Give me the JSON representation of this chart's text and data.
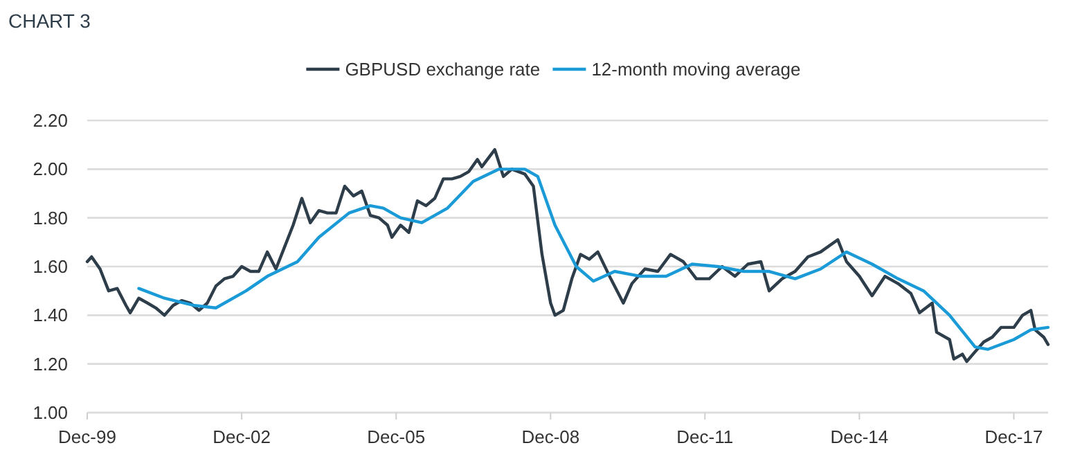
{
  "chart_data": {
    "type": "line",
    "title": "CHART 3",
    "xlim": [
      "1999-12",
      "2018-08"
    ],
    "xticks": [
      {
        "value": "1999-12",
        "label": "Dec-99"
      },
      {
        "value": "2002-12",
        "label": "Dec-02"
      },
      {
        "value": "2005-12",
        "label": "Dec-05"
      },
      {
        "value": "2008-12",
        "label": "Dec-08"
      },
      {
        "value": "2011-12",
        "label": "Dec-11"
      },
      {
        "value": "2014-12",
        "label": "Dec-14"
      },
      {
        "value": "2017-12",
        "label": "Dec-17"
      }
    ],
    "ylim": [
      1.0,
      2.2
    ],
    "yticks": [
      {
        "value": 1.0,
        "label": "1.00"
      },
      {
        "value": 1.2,
        "label": "1.20"
      },
      {
        "value": 1.4,
        "label": "1.40"
      },
      {
        "value": 1.6,
        "label": "1.60"
      },
      {
        "value": 1.8,
        "label": "1.80"
      },
      {
        "value": 2.0,
        "label": "2.00"
      },
      {
        "value": 2.2,
        "label": "2.20"
      }
    ],
    "grid": "y",
    "legend": "top",
    "marker": "none",
    "line_style": "solid",
    "series": [
      {
        "name": "GBPUSD exchange rate",
        "color": "#2e3d4a",
        "x": [
          "1999-12",
          "2000-01",
          "2000-03",
          "2000-05",
          "2000-07",
          "2000-09",
          "2000-10",
          "2000-12",
          "2001-02",
          "2001-04",
          "2001-06",
          "2001-08",
          "2001-10",
          "2001-12",
          "2002-02",
          "2002-04",
          "2002-06",
          "2002-08",
          "2002-10",
          "2002-12",
          "2003-02",
          "2003-04",
          "2003-06",
          "2003-08",
          "2003-10",
          "2003-12",
          "2004-02",
          "2004-04",
          "2004-06",
          "2004-08",
          "2004-10",
          "2004-12",
          "2005-02",
          "2005-04",
          "2005-06",
          "2005-08",
          "2005-10",
          "2005-11",
          "2006-01",
          "2006-03",
          "2006-05",
          "2006-07",
          "2006-09",
          "2006-11",
          "2007-01",
          "2007-03",
          "2007-05",
          "2007-07",
          "2007-08",
          "2007-11",
          "2008-01",
          "2008-03",
          "2008-06",
          "2008-08",
          "2008-10",
          "2008-12",
          "2009-01",
          "2009-03",
          "2009-05",
          "2009-07",
          "2009-09",
          "2009-11",
          "2010-02",
          "2010-05",
          "2010-07",
          "2010-10",
          "2011-01",
          "2011-04",
          "2011-07",
          "2011-10",
          "2012-01",
          "2012-04",
          "2012-07",
          "2012-10",
          "2013-01",
          "2013-03",
          "2013-06",
          "2013-09",
          "2013-12",
          "2014-03",
          "2014-07",
          "2014-09",
          "2014-12",
          "2015-03",
          "2015-06",
          "2015-09",
          "2015-12",
          "2016-02",
          "2016-05",
          "2016-06",
          "2016-09",
          "2016-10",
          "2016-12",
          "2017-01",
          "2017-03",
          "2017-05",
          "2017-07",
          "2017-09",
          "2017-12",
          "2018-02",
          "2018-04",
          "2018-05",
          "2018-07",
          "2018-08"
        ],
        "values": [
          1.62,
          1.64,
          1.59,
          1.5,
          1.51,
          1.44,
          1.41,
          1.47,
          1.45,
          1.43,
          1.4,
          1.44,
          1.46,
          1.45,
          1.42,
          1.45,
          1.52,
          1.55,
          1.56,
          1.6,
          1.58,
          1.58,
          1.66,
          1.59,
          1.68,
          1.77,
          1.88,
          1.78,
          1.83,
          1.82,
          1.82,
          1.93,
          1.89,
          1.91,
          1.81,
          1.8,
          1.77,
          1.72,
          1.77,
          1.74,
          1.87,
          1.85,
          1.88,
          1.96,
          1.96,
          1.97,
          1.99,
          2.04,
          2.01,
          2.08,
          1.97,
          2.0,
          1.98,
          1.93,
          1.65,
          1.45,
          1.4,
          1.42,
          1.55,
          1.65,
          1.63,
          1.66,
          1.55,
          1.45,
          1.53,
          1.59,
          1.58,
          1.65,
          1.62,
          1.55,
          1.55,
          1.6,
          1.56,
          1.61,
          1.62,
          1.5,
          1.55,
          1.58,
          1.64,
          1.66,
          1.71,
          1.62,
          1.56,
          1.48,
          1.56,
          1.53,
          1.49,
          1.41,
          1.45,
          1.33,
          1.3,
          1.22,
          1.24,
          1.21,
          1.25,
          1.29,
          1.31,
          1.35,
          1.35,
          1.4,
          1.42,
          1.34,
          1.31,
          1.28
        ]
      },
      {
        "name": "12-month moving average",
        "color": "#1a9ad6",
        "x": [
          "2000-12",
          "2001-06",
          "2002-01",
          "2002-06",
          "2003-01",
          "2003-06",
          "2004-01",
          "2004-06",
          "2005-01",
          "2005-06",
          "2005-09",
          "2006-01",
          "2006-06",
          "2006-12",
          "2007-06",
          "2007-12",
          "2008-03",
          "2008-06",
          "2008-09",
          "2009-01",
          "2009-06",
          "2009-10",
          "2010-03",
          "2010-09",
          "2011-03",
          "2011-09",
          "2012-03",
          "2012-09",
          "2013-03",
          "2013-09",
          "2014-03",
          "2014-09",
          "2015-03",
          "2015-09",
          "2016-03",
          "2016-09",
          "2017-03",
          "2017-06",
          "2017-12",
          "2018-04",
          "2018-08"
        ],
        "values": [
          1.51,
          1.47,
          1.44,
          1.43,
          1.5,
          1.56,
          1.62,
          1.72,
          1.82,
          1.85,
          1.84,
          1.8,
          1.78,
          1.84,
          1.95,
          2.0,
          2.0,
          2.0,
          1.97,
          1.77,
          1.6,
          1.54,
          1.58,
          1.56,
          1.56,
          1.61,
          1.6,
          1.58,
          1.58,
          1.55,
          1.59,
          1.66,
          1.61,
          1.55,
          1.5,
          1.4,
          1.27,
          1.26,
          1.3,
          1.34,
          1.35
        ]
      }
    ]
  }
}
